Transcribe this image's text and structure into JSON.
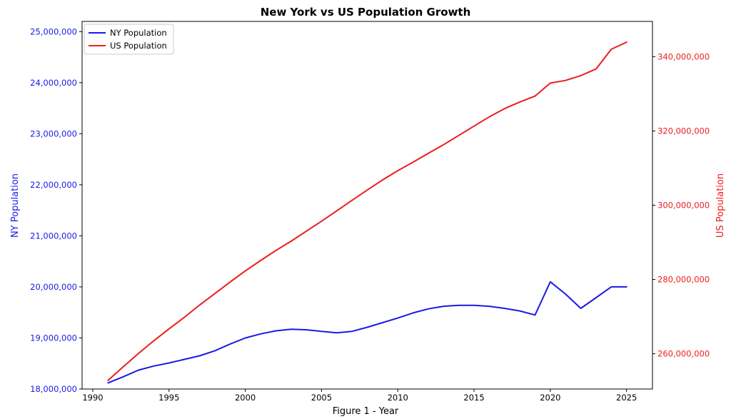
{
  "chart_data": {
    "type": "line",
    "title": "New York vs US Population Growth",
    "xlabel": "Figure 1 - Year",
    "ylabel_left": "NY Population",
    "ylabel_right": "US Population",
    "xlim": [
      1989.3,
      2026.7
    ],
    "ylim_left": [
      18000000,
      25200000
    ],
    "ylim_right": [
      250500000,
      349500000
    ],
    "x_ticks": [
      1990,
      1995,
      2000,
      2005,
      2010,
      2015,
      2020,
      2025
    ],
    "x_tick_labels": [
      "1990",
      "1995",
      "2000",
      "2005",
      "2010",
      "2015",
      "2020",
      "2025"
    ],
    "y_left_ticks": [
      18000000,
      19000000,
      20000000,
      21000000,
      22000000,
      23000000,
      24000000,
      25000000
    ],
    "y_left_tick_labels": [
      "18,000,000",
      "19,000,000",
      "20,000,000",
      "21,000,000",
      "22,000,000",
      "23,000,000",
      "24,000,000",
      "25,000,000"
    ],
    "y_right_ticks": [
      260000000,
      280000000,
      300000000,
      320000000,
      340000000
    ],
    "y_right_tick_labels": [
      "260,000,000",
      "280,000,000",
      "300,000,000",
      "320,000,000",
      "340,000,000"
    ],
    "legend_position": "top-left",
    "grid": false,
    "x": [
      1991,
      1992,
      1993,
      1994,
      1995,
      1996,
      1997,
      1998,
      1999,
      2000,
      2001,
      2002,
      2003,
      2004,
      2005,
      2006,
      2007,
      2008,
      2009,
      2010,
      2011,
      2012,
      2013,
      2014,
      2015,
      2016,
      2017,
      2018,
      2019,
      2020,
      2021,
      2022,
      2023,
      2024,
      2025
    ],
    "series": [
      {
        "name": "NY Population",
        "axis": "left",
        "color": "#1a1ae6",
        "values": [
          18120000,
          18240000,
          18370000,
          18450000,
          18510000,
          18580000,
          18650000,
          18750000,
          18880000,
          19000000,
          19080000,
          19140000,
          19170000,
          19160000,
          19130000,
          19100000,
          19130000,
          19210000,
          19300000,
          19390000,
          19490000,
          19570000,
          19620000,
          19640000,
          19640000,
          19620000,
          19580000,
          19530000,
          19450000,
          20100000,
          19860000,
          19580000,
          19790000,
          20000000,
          20000000
        ]
      },
      {
        "name": "US Population",
        "axis": "right",
        "color": "#ee1c1c",
        "values": [
          252800000,
          256500000,
          260100000,
          263500000,
          266700000,
          269800000,
          273100000,
          276200000,
          279300000,
          282300000,
          285100000,
          287800000,
          290300000,
          293000000,
          295700000,
          298500000,
          301300000,
          304100000,
          306800000,
          309300000,
          311600000,
          314000000,
          316300000,
          318800000,
          321300000,
          323800000,
          326000000,
          327800000,
          329400000,
          332900000,
          333600000,
          334900000,
          336700000,
          342000000,
          343900000
        ]
      }
    ]
  }
}
